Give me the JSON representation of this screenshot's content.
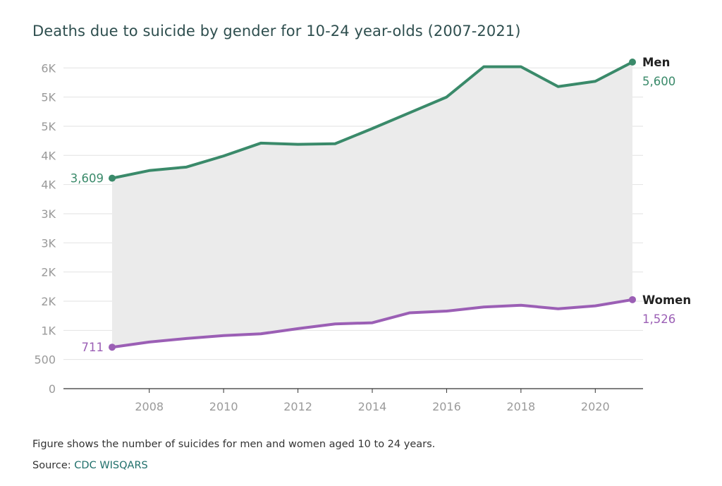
{
  "title": "Deaths due to suicide by gender for 10-24 year-olds (2007-2021)",
  "note": "Figure shows the number of suicides for men and women aged 10 to 24 years.",
  "source": {
    "label": "Source: ",
    "name": "CDC WISQARS"
  },
  "colors": {
    "men": "#3a8a6a",
    "women": "#9b5fb5",
    "area": "#ebebeb",
    "grid": "#e2e2e2",
    "axis": "#333333",
    "tick": "#9a9a9a"
  },
  "chart_data": {
    "type": "line",
    "title": "Deaths due to suicide by gender for 10-24 year-olds (2007-2021)",
    "xlabel": "",
    "ylabel": "",
    "x": [
      2007,
      2008,
      2009,
      2010,
      2011,
      2012,
      2013,
      2014,
      2015,
      2016,
      2017,
      2018,
      2019,
      2020,
      2021
    ],
    "xticks": [
      "2008",
      "2010",
      "2012",
      "2014",
      "2016",
      "2018",
      "2020"
    ],
    "yticks": [
      {
        "value": 0,
        "label": "0"
      },
      {
        "value": 500,
        "label": "500"
      },
      {
        "value": 1000,
        "label": "1K"
      },
      {
        "value": 1500,
        "label": "2K"
      },
      {
        "value": 2000,
        "label": "2K"
      },
      {
        "value": 2500,
        "label": "3K"
      },
      {
        "value": 3000,
        "label": "3K"
      },
      {
        "value": 3500,
        "label": "4K"
      },
      {
        "value": 4000,
        "label": "4K"
      },
      {
        "value": 4500,
        "label": "5K"
      },
      {
        "value": 5000,
        "label": "5K"
      },
      {
        "value": 5500,
        "label": "6K"
      }
    ],
    "ylim": [
      0,
      5600
    ],
    "series": [
      {
        "name": "Men",
        "values": [
          3609,
          3740,
          3800,
          3990,
          4210,
          4190,
          4200,
          4460,
          4730,
          5000,
          5520,
          5520,
          5180,
          5270,
          5600
        ],
        "start_label": "3,609",
        "end_label": "5,600"
      },
      {
        "name": "Women",
        "values": [
          711,
          800,
          860,
          910,
          940,
          1030,
          1110,
          1130,
          1300,
          1330,
          1400,
          1430,
          1370,
          1420,
          1526
        ],
        "start_label": "711",
        "end_label": "1,526"
      }
    ],
    "area_between_series": true,
    "grid": true,
    "legend": "none"
  }
}
